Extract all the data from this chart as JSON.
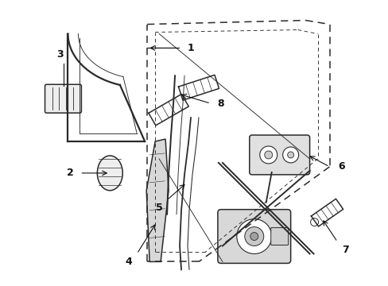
{
  "bg_color": "#ffffff",
  "line_color": "#2a2a2a",
  "label_color": "#111111",
  "figsize": [
    4.89,
    3.6
  ],
  "dpi": 100
}
